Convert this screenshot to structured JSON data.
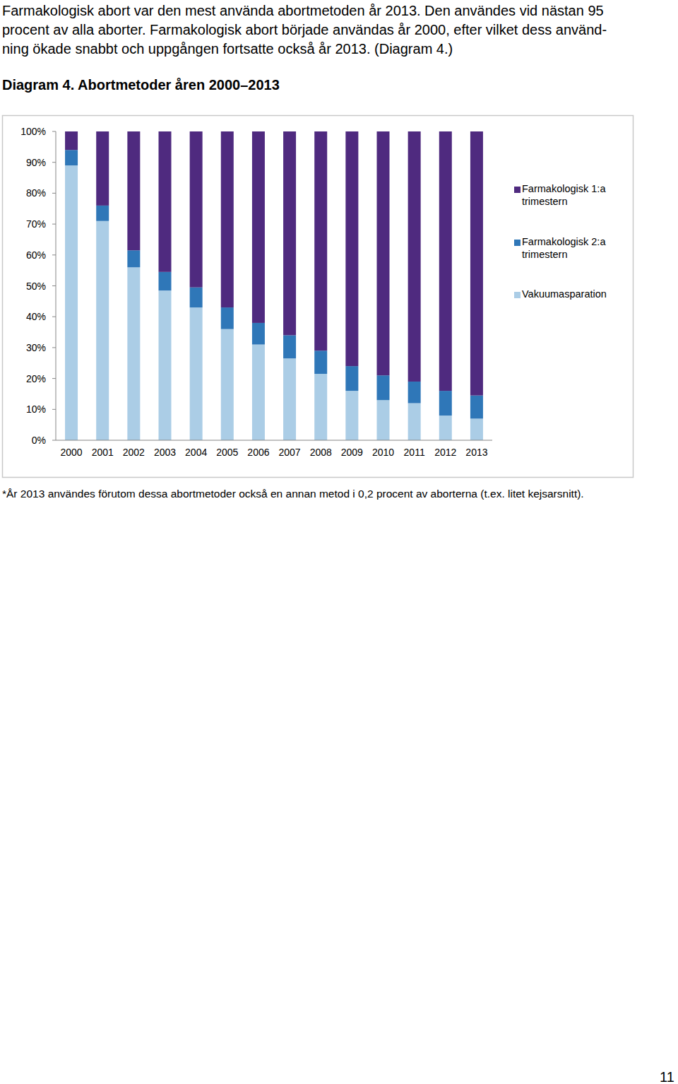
{
  "page": {
    "paragraph_lines": [
      "Farmakologisk abort var den mest använda abortmetoden år 2013. Den användes vid nästan 95",
      "procent av alla aborter. Farmakologisk abort började användas år 2000, efter vilket dess använd-",
      "ning ökade snabbt och uppgången fortsatte också år 2013. (Diagram 4.)"
    ],
    "footnote": "*År 2013 användes förutom dessa abortmetoder också en annan metod i 0,2 procent av aborterna (t.ex. litet kejsarsnitt).",
    "page_number": "11"
  },
  "chart_data": {
    "type": "bar",
    "title": "Diagram 4. Abortmetoder åren 2000–2013",
    "stacked": true,
    "grid": false,
    "legend": "right",
    "categories": [
      "2000",
      "2001",
      "2002",
      "2003",
      "2004",
      "2005",
      "2006",
      "2007",
      "2008",
      "2009",
      "2010",
      "2011",
      "2012",
      "2013"
    ],
    "ylim": [
      0,
      100
    ],
    "yticks": [
      {
        "value": 0,
        "label": "0%"
      },
      {
        "value": 10,
        "label": "10%"
      },
      {
        "value": 20,
        "label": "20%"
      },
      {
        "value": 30,
        "label": "30%"
      },
      {
        "value": 40,
        "label": "40%"
      },
      {
        "value": 50,
        "label": "50%"
      },
      {
        "value": 60,
        "label": "60%"
      },
      {
        "value": 70,
        "label": "70%"
      },
      {
        "value": 80,
        "label": "80%"
      },
      {
        "value": 90,
        "label": "90%"
      },
      {
        "value": 100,
        "label": "100%"
      }
    ],
    "series": [
      {
        "name": "Farmakologisk 1:a trimestern",
        "color": "#4f2a7f",
        "values": [
          6,
          24,
          38.5,
          45.5,
          50.5,
          57,
          62,
          66,
          71,
          76,
          79,
          81,
          84,
          85.5
        ]
      },
      {
        "name": "Farmakologisk 2:a trimestern",
        "color": "#2f77b8",
        "values": [
          5,
          5,
          5.5,
          6,
          6.5,
          7,
          7,
          7.5,
          7.5,
          8,
          8,
          7,
          8,
          7.5
        ]
      },
      {
        "name": "Vakuumasparation",
        "color": "#abcde6",
        "values": [
          89,
          71,
          56,
          48.5,
          43,
          36,
          31,
          26.5,
          21.5,
          16,
          13,
          12,
          8,
          7
        ]
      }
    ]
  }
}
